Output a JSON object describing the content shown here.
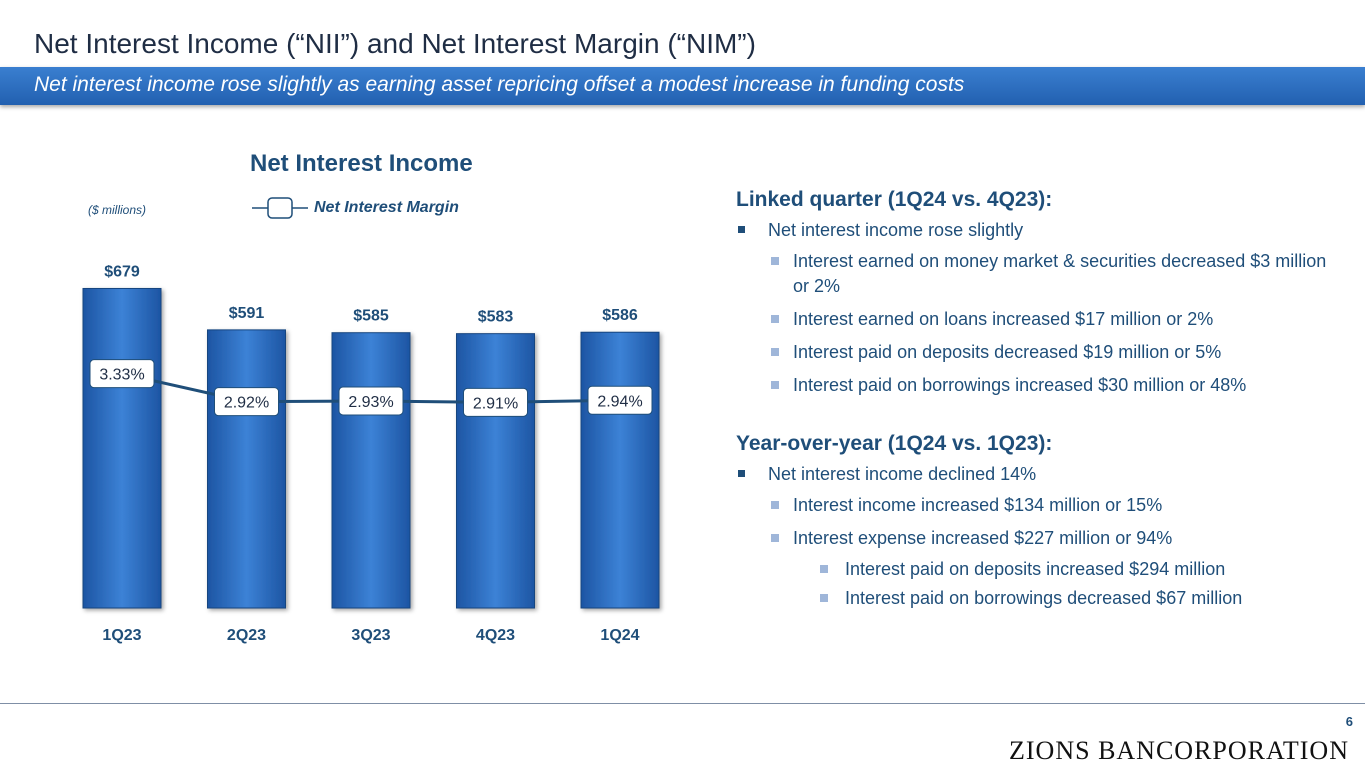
{
  "header": {
    "title": "Net Interest Income (“NII”) and Net Interest Margin (“NIM”)",
    "subtitle": "Net interest income rose slightly as earning asset repricing offset a modest increase in funding costs"
  },
  "chart": {
    "units_note": "($ millions)",
    "legend_label": "Net  Interest Margin"
  },
  "chart_data": {
    "type": "bar",
    "title": "Net Interest Income",
    "categories": [
      "1Q23",
      "2Q23",
      "3Q23",
      "4Q23",
      "1Q24"
    ],
    "series": [
      {
        "name": "Net Interest Income",
        "values": [
          679,
          591,
          585,
          583,
          586
        ],
        "labels": [
          "$679",
          "$591",
          "$585",
          "$583",
          "$586"
        ]
      },
      {
        "name": "Net  Interest Margin",
        "type": "line",
        "values": [
          3.33,
          2.92,
          2.93,
          2.91,
          2.94
        ],
        "labels": [
          "3.33%",
          "2.92%",
          "2.93%",
          "2.91%",
          "2.94%"
        ]
      }
    ],
    "ylim": [
      0,
      680
    ],
    "bar_color": "#2a6bc2",
    "line_color": "#1f4e79"
  },
  "bullets": {
    "linked_heading": "Linked quarter (1Q24 vs. 4Q23):",
    "linked_main": "Net interest income rose slightly",
    "linked_items": [
      "Interest earned on money market & securities decreased $3 million or 2%",
      "Interest earned on loans increased $17 million or 2%",
      "Interest paid on deposits decreased $19 million or 5%",
      "Interest paid on borrowings increased $30 million or 48%"
    ],
    "yoy_heading": "Year-over-year (1Q24 vs. 1Q23):",
    "yoy_main": "Net interest income declined 14%",
    "yoy_items": [
      "Interest income increased $134 million or 15%",
      "Interest expense increased $227 million or 94%"
    ],
    "yoy_subitems": [
      "Interest paid on deposits increased $294 million",
      "Interest paid on borrowings decreased $67 million"
    ]
  },
  "footer": {
    "page_number": "6",
    "logo": "ZIONS BANCORPORATION"
  }
}
